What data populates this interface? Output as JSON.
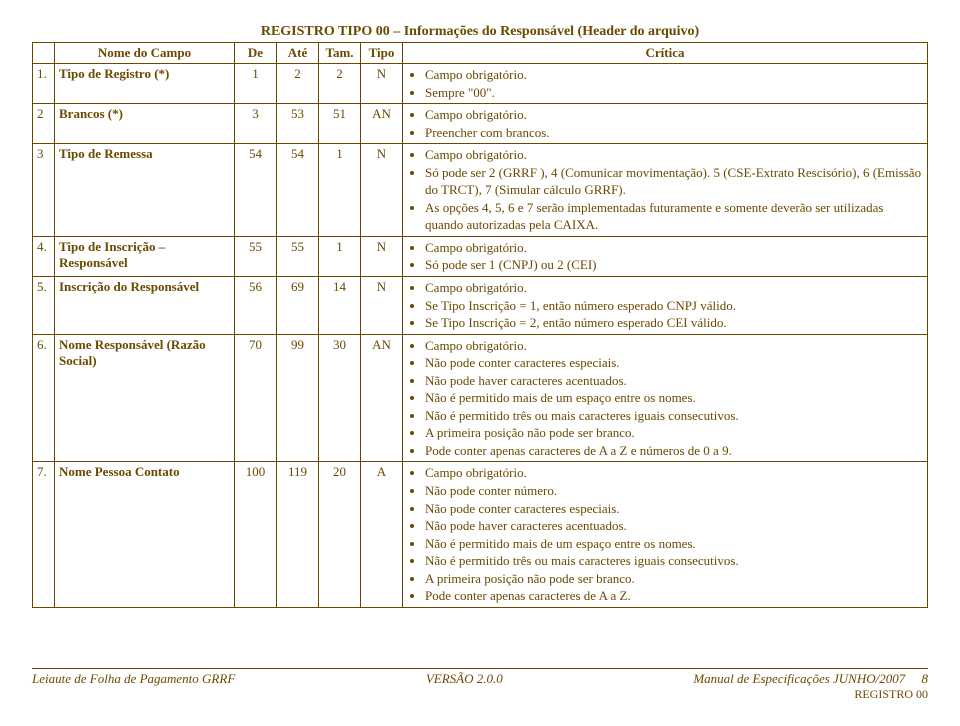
{
  "title": "REGISTRO TIPO 00 – Informações do Responsável (Header do arquivo)",
  "columns": {
    "num": "",
    "nome": "Nome do Campo",
    "de": "De",
    "ate": "Até",
    "tam": "Tam.",
    "tipo": "Tipo",
    "critica": "Crítica"
  },
  "rows": [
    {
      "num": "1.",
      "nome": "Tipo de Registro (*)",
      "de": "1",
      "ate": "2",
      "tam": "2",
      "tipo": "N",
      "critica": [
        "Campo obrigatório.",
        "Sempre \"00\"."
      ]
    },
    {
      "num": "2",
      "nome": "Brancos (*)",
      "de": "3",
      "ate": "53",
      "tam": "51",
      "tipo": "AN",
      "critica": [
        "Campo obrigatório.",
        "Preencher com brancos."
      ]
    },
    {
      "num": "3",
      "nome": "Tipo de Remessa",
      "de": "54",
      "ate": "54",
      "tam": "1",
      "tipo": "N",
      "critica": [
        "Campo obrigatório.",
        "Só pode ser 2 (GRRF ),  4 (Comunicar movimentação). 5 (CSE-Extrato Rescisório), 6 (Emissão do TRCT), 7 (Simular cálculo GRRF).",
        "As opções 4, 5, 6 e 7 serão  implementadas futuramente e somente deverão ser utilizadas quando autorizadas pela CAIXA."
      ]
    },
    {
      "num": "4.",
      "nome": "Tipo de Inscrição – Responsável",
      "de": "55",
      "ate": "55",
      "tam": "1",
      "tipo": "N",
      "critica": [
        "Campo obrigatório.",
        "Só pode ser 1 (CNPJ)  ou   2 (CEI)"
      ]
    },
    {
      "num": "5.",
      "nome": "Inscrição do Responsável",
      "de": "56",
      "ate": "69",
      "tam": "14",
      "tipo": "N",
      "critica": [
        "Campo obrigatório.",
        "Se Tipo Inscrição = 1, então número esperado CNPJ válido.",
        "Se Tipo Inscrição = 2, então número esperado CEI válido."
      ]
    },
    {
      "num": "6.",
      "nome": "Nome Responsável (Razão Social)",
      "de": "70",
      "ate": "99",
      "tam": "30",
      "tipo": "AN",
      "critica": [
        "Campo obrigatório.",
        "Não pode conter caracteres especiais.",
        "Não pode haver caracteres acentuados.",
        "Não é permitido mais de um espaço entre os nomes.",
        "Não é permitido três ou mais caracteres iguais consecutivos.",
        "A primeira posição não pode ser branco.",
        "Pode conter  apenas caracteres de A a Z e números de 0 a 9."
      ]
    },
    {
      "num": "7.",
      "nome": "Nome Pessoa Contato",
      "de": "100",
      "ate": "119",
      "tam": "20",
      "tipo": "A",
      "critica": [
        "Campo obrigatório.",
        "Não pode conter número.",
        "Não pode conter caracteres especiais.",
        "Não pode haver caracteres acentuados.",
        "Não é permitido mais de um espaço entre os nomes.",
        "Não é permitido três ou mais caracteres iguais consecutivos.",
        "A primeira posição não pode ser branco.",
        "Pode conter  apenas caracteres de A a Z."
      ]
    }
  ],
  "footer": {
    "left": "Leiaute de Folha de Pagamento GRRF",
    "center": "VERSÃO 2.0.0",
    "right": "Manual de Especificações JUNHO/2007",
    "page": "8",
    "regline": "REGISTRO 00"
  }
}
